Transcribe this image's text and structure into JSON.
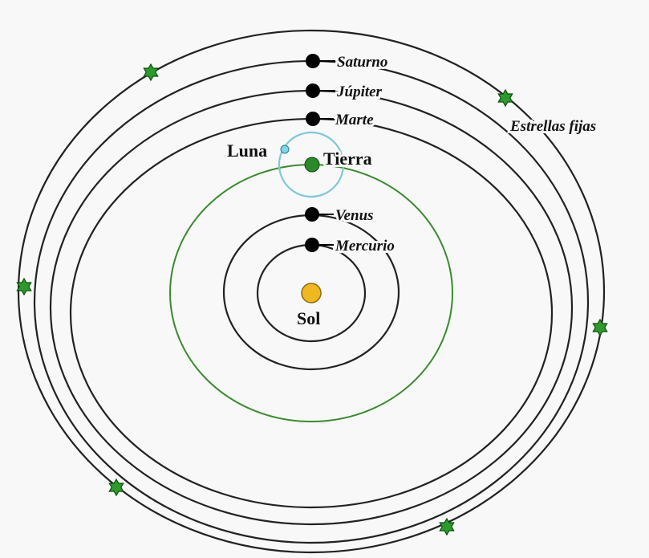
{
  "bodies": [
    {
      "label": "Saturno"
    },
    {
      "label": "Júpiter"
    },
    {
      "label": "Marte"
    },
    {
      "label": "Luna"
    },
    {
      "label": "Tierra"
    },
    {
      "label": "Venus"
    },
    {
      "label": "Mercurio"
    },
    {
      "label": "Sol"
    }
  ],
  "fixed_stars": {
    "label": "Estrellas fijas"
  }
}
